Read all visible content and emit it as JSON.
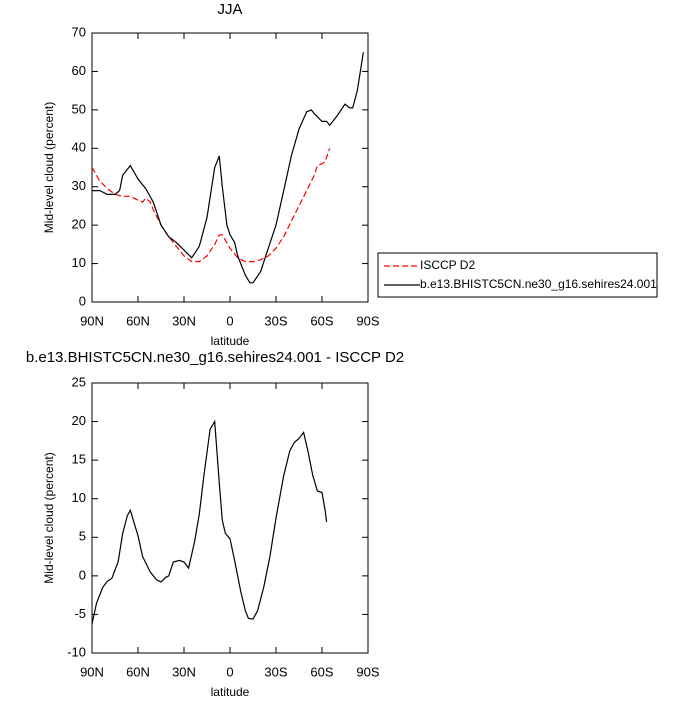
{
  "chart_data": [
    {
      "type": "line",
      "title": "JJA",
      "xlabel": "latitude",
      "ylabel": "Mid-level cloud (percent)",
      "xlim": [
        90,
        -90
      ],
      "ylim": [
        0,
        70
      ],
      "xticks": [
        {
          "value": 90,
          "label": "90N"
        },
        {
          "value": 60,
          "label": "60N"
        },
        {
          "value": 30,
          "label": "30N"
        },
        0,
        {
          "value": -30,
          "label": "30S"
        },
        {
          "value": -60,
          "label": "60S"
        },
        {
          "value": -90,
          "label": "90S"
        }
      ],
      "yticks": [
        0,
        10,
        20,
        30,
        40,
        50,
        60,
        70
      ],
      "legend": "right",
      "series": [
        {
          "name": "ISCCP D2",
          "color": "#ff0000",
          "linestyle": "dashed",
          "x": [
            90,
            85,
            80,
            75,
            70,
            65,
            60,
            57,
            55,
            52,
            50,
            45,
            40,
            35,
            30,
            25,
            20,
            15,
            10,
            7,
            5,
            0,
            -5,
            -10,
            -15,
            -20,
            -25,
            -30,
            -35,
            -40,
            -45,
            -50,
            -55,
            -57,
            -60,
            -62,
            -65
          ],
          "values": [
            35,
            31.5,
            29.5,
            28,
            27.5,
            27.5,
            26.5,
            26,
            27,
            26,
            24,
            20,
            17,
            14.5,
            12,
            10.5,
            10.5,
            12,
            15,
            17.5,
            17.5,
            14,
            11.5,
            10.5,
            10.5,
            11,
            12,
            14,
            17,
            21,
            25,
            29,
            33,
            35.5,
            36,
            36.5,
            40
          ]
        },
        {
          "name": "b.e13.BHISTC5CN.ne30_g16.sehires24.001",
          "color": "#000000",
          "linestyle": "solid",
          "x": [
            90,
            85,
            80,
            75,
            72,
            70,
            65,
            60,
            55,
            50,
            45,
            40,
            35,
            30,
            25,
            20,
            15,
            10,
            7,
            5,
            2,
            0,
            -3,
            -5,
            -10,
            -13,
            -15,
            -20,
            -25,
            -30,
            -35,
            -40,
            -45,
            -50,
            -53,
            -55,
            -60,
            -63,
            -65,
            -70,
            -75,
            -78,
            -80,
            -83,
            -87
          ],
          "values": [
            29,
            29,
            28,
            28,
            29,
            33,
            35.5,
            32,
            29.5,
            26,
            20,
            17,
            15.5,
            13.5,
            11.5,
            14.5,
            22,
            35,
            38,
            30,
            20,
            17.5,
            15.5,
            12,
            7,
            5,
            5,
            8,
            14,
            20,
            29,
            38,
            45,
            49.5,
            50,
            49,
            47,
            47,
            46,
            48.5,
            51.5,
            50.5,
            50.5,
            55,
            65
          ]
        }
      ]
    },
    {
      "type": "line",
      "title": "b.e13.BHISTC5CN.ne30_g16.sehires24.001 - ISCCP D2",
      "xlabel": "latitude",
      "ylabel": "Mid-level cloud (percent)",
      "xlim": [
        90,
        -90
      ],
      "ylim": [
        -10,
        25
      ],
      "xticks": [
        {
          "value": 90,
          "label": "90N"
        },
        {
          "value": 60,
          "label": "60N"
        },
        {
          "value": 30,
          "label": "30N"
        },
        0,
        {
          "value": -30,
          "label": "30S"
        },
        {
          "value": -60,
          "label": "60S"
        },
        {
          "value": -90,
          "label": "90S"
        }
      ],
      "yticks": [
        -10,
        -5,
        0,
        5,
        10,
        15,
        20,
        25
      ],
      "series": [
        {
          "color": "#000000",
          "linestyle": "solid",
          "x": [
            90,
            87,
            83,
            80,
            77,
            73,
            70,
            67,
            65,
            60,
            57,
            52,
            48,
            45,
            42,
            40,
            37,
            33,
            30,
            27,
            23,
            20,
            17,
            13,
            10,
            7,
            5,
            3,
            0,
            -3,
            -7,
            -10,
            -12,
            -15,
            -18,
            -22,
            -26,
            -30,
            -35,
            -39,
            -42,
            -45,
            -48,
            -51,
            -54,
            -57,
            -60,
            -62,
            -63
          ],
          "values": [
            -6.2,
            -3.5,
            -1.5,
            -0.7,
            -0.3,
            1.8,
            5.5,
            7.8,
            8.5,
            5.2,
            2.5,
            0.5,
            -0.5,
            -0.8,
            -0.2,
            0,
            1.8,
            2,
            1.8,
            1,
            4.5,
            8,
            13,
            19,
            20,
            12,
            7.2,
            5.5,
            4.8,
            2,
            -2,
            -4.5,
            -5.5,
            -5.6,
            -4.5,
            -1.5,
            2.5,
            7.5,
            13,
            16.2,
            17.3,
            17.8,
            18.6,
            16,
            13,
            11,
            10.8,
            8.5,
            7
          ]
        }
      ]
    }
  ]
}
